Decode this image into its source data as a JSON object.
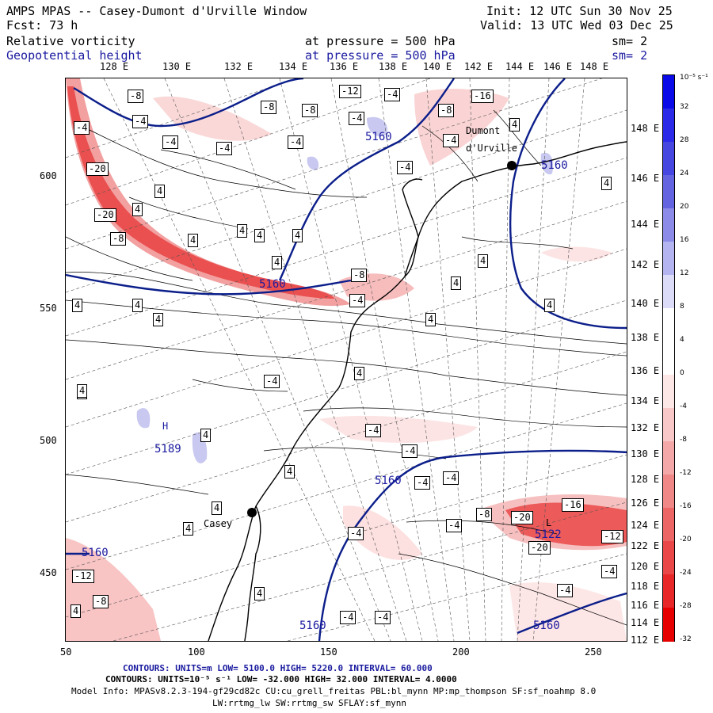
{
  "header": {
    "title": "AMPS MPAS -- Casey-Dumont d'Urville Window",
    "init": "Init: 12 UTC Sun 30 Nov 25",
    "fcst": "Fcst:   73 h",
    "valid": "Valid: 13 UTC Wed 03 Dec 25",
    "field1_name": "Relative vorticity",
    "field1_level": "at pressure =  500 hPa",
    "field1_sm": "sm= 2",
    "field2_name": "Geopotential height",
    "field2_level": "at pressure =  500 hPa",
    "field2_sm": "sm= 2"
  },
  "colorbar": {
    "unit_label": "10⁻⁵ s⁻¹",
    "ticks": [
      "32",
      "28",
      "24",
      "20",
      "16",
      "12",
      "8",
      "4",
      "0",
      "-4",
      "-8",
      "-12",
      "-16",
      "-20",
      "-24",
      "-28",
      "-32"
    ],
    "colors": [
      "#0a0ae8",
      "#2a2ae8",
      "#4646e0",
      "#6464e0",
      "#8c8ce8",
      "#b4b4f0",
      "#dcdcf8",
      "#ffffff",
      "#ffffff",
      "#fde6e6",
      "#f8c8c8",
      "#f4a8a8",
      "#f08888",
      "#ec6666",
      "#ea4848",
      "#e82828",
      "#e60000"
    ]
  },
  "axes": {
    "left_labels": [
      "600",
      "550",
      "500",
      "450"
    ],
    "bottom_labels": [
      "50",
      "100",
      "150",
      "200",
      "250"
    ],
    "top_lon_labels": [
      "128 E",
      "130 E",
      "132 E",
      "134 E",
      "136 E",
      "138 E",
      "140 E",
      "142 E",
      "144 E",
      "146 E",
      "148 E"
    ],
    "right_lon_labels": [
      "148 E",
      "146 E",
      "144 E",
      "142 E",
      "140 E",
      "138 E",
      "136 E",
      "134 E",
      "132 E",
      "130 E",
      "128 E",
      "126 E",
      "124 E",
      "122 E",
      "120 E",
      "118 E",
      "116 E",
      "114 E",
      "112 E"
    ]
  },
  "places": {
    "dumont": "Dumont",
    "durville": "d'Urville",
    "casey": "Casey",
    "high_label": "H",
    "high_value": "5189",
    "low_label": "L",
    "low_value": "5122"
  },
  "height_labels": [
    "5160",
    "5160",
    "5160",
    "5160",
    "5160",
    "5160",
    "5160"
  ],
  "vort_labels": [
    "-8",
    "-4",
    "-8",
    "-12",
    "-4",
    "-16",
    "-8",
    "-4",
    "-4",
    "-4",
    "-20",
    "-4",
    "4",
    "-4",
    "4",
    "-20",
    "-8",
    "4",
    "4",
    "-8",
    "-4",
    "-8",
    "-4",
    "4",
    "4",
    "4",
    "4",
    "4",
    "4",
    "-4",
    "4",
    "4",
    "4",
    "4",
    "4",
    "4",
    "-4",
    "4",
    "4",
    "4",
    "-4",
    "4",
    "-4",
    "-4",
    "-4",
    "-4",
    "-4",
    "-8",
    "-20",
    "-16",
    "-20",
    "-12",
    "-4",
    "-12",
    "-8",
    "-4",
    "-4",
    "-4",
    "4",
    "4",
    "4",
    "4",
    "4"
  ],
  "footer": {
    "line1": "CONTOURS:  UNITS=m  LOW=  5100.0         HIGH=  5220.0        INTERVAL=   60.000",
    "line2": "CONTOURS:  UNITS=10⁻⁵ s⁻¹   LOW= -32.000         HIGH=  32.000        INTERVAL=   4.0000",
    "line3": "Model Info: MPASv8.2.3-194-gf29cd82c CU:cu_grell_freitas PBL:bl_mynn MP:mp_thompson SF:sf_noahmp 8.0",
    "line4": "LW:rrtmg_lw SW:rrtmg_sw SFLAY:sf_mynn"
  }
}
